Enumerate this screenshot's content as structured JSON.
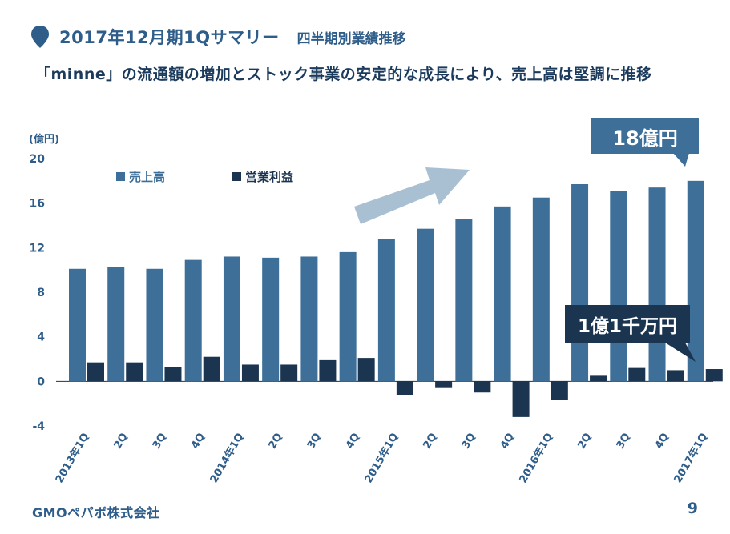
{
  "header": {
    "title": "2017年12月期1Qサマリー",
    "subtitle": "四半期別業績推移",
    "headline": "「minne」の流通額の増加とストック事業の安定的な成長により、売上高は堅調に推移"
  },
  "callouts": {
    "sales": "18億円",
    "profit": "1億1千万円"
  },
  "footer": {
    "company": "GMOペパボ株式会社",
    "page": "9"
  },
  "colors": {
    "sales": "#3d6f99",
    "profit": "#1b3450",
    "arrow": "#a9c0d3",
    "accent": "#2e5d8a"
  },
  "chart_data": {
    "type": "bar",
    "ylabel": "(億円)",
    "ylim": [
      -4,
      20
    ],
    "yticks": [
      20,
      16,
      12,
      8,
      4,
      0,
      -4
    ],
    "legend_position": "top-left",
    "categories": [
      "2013年1Q",
      "2Q",
      "3Q",
      "4Q",
      "2014年1Q",
      "2Q",
      "3Q",
      "4Q",
      "2015年1Q",
      "2Q",
      "3Q",
      "4Q",
      "2016年1Q",
      "2Q",
      "3Q",
      "4Q",
      "2017年1Q"
    ],
    "series": [
      {
        "name": "売上高",
        "values": [
          10.1,
          10.3,
          10.1,
          10.9,
          11.2,
          11.1,
          11.2,
          11.6,
          12.8,
          13.7,
          14.6,
          15.7,
          16.5,
          17.7,
          17.1,
          17.4,
          18.0
        ]
      },
      {
        "name": "営業利益",
        "values": [
          1.7,
          1.7,
          1.3,
          2.2,
          1.5,
          1.5,
          1.9,
          2.1,
          -1.2,
          -0.6,
          -1.0,
          -3.2,
          -1.7,
          0.5,
          1.2,
          1.0,
          1.1
        ]
      }
    ]
  }
}
